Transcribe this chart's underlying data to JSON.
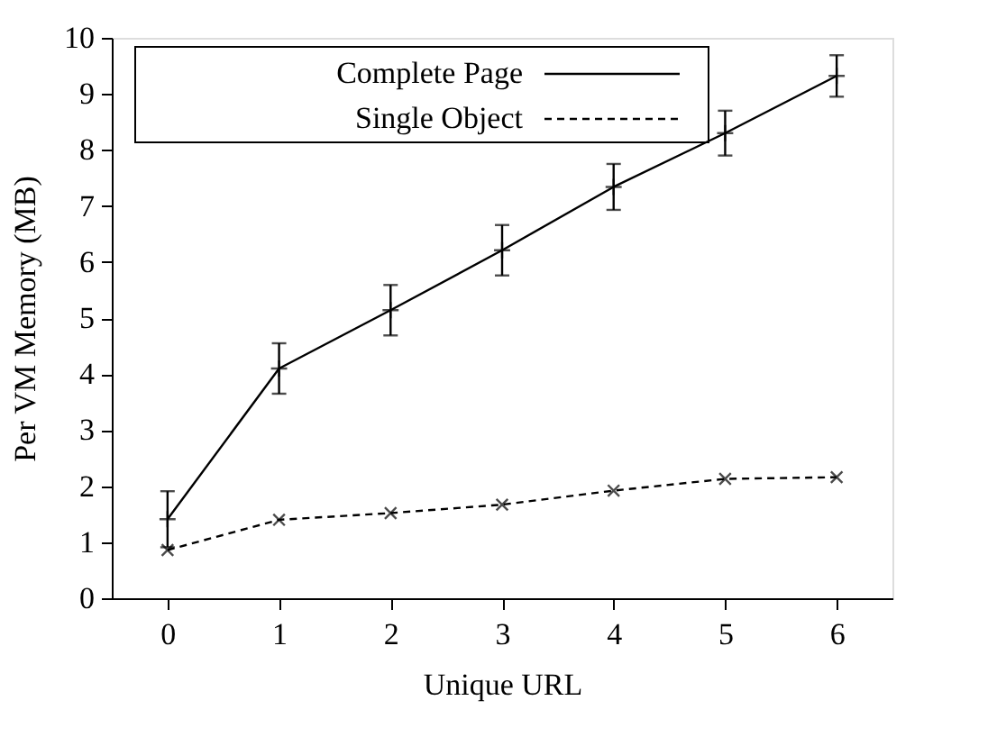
{
  "chart_data": {
    "type": "line",
    "xlabel": "Unique URL",
    "ylabel": "Per VM Memory (MB)",
    "x": [
      0,
      1,
      2,
      3,
      4,
      5,
      6
    ],
    "xlim": [
      -0.5,
      6.5
    ],
    "xticks": [
      0,
      1,
      2,
      3,
      4,
      5,
      6
    ],
    "ylim": [
      0,
      10
    ],
    "yticks": [
      0,
      1,
      2,
      3,
      4,
      5,
      6,
      7,
      8,
      9,
      10
    ],
    "grid": false,
    "legend": "top left",
    "marker": "cross",
    "series": [
      {
        "name": "Complete Page",
        "color": "#000000",
        "line_style": "solid",
        "values": [
          1.41,
          4.1,
          5.14,
          6.21,
          7.34,
          8.3,
          9.32
        ],
        "errors": [
          0.5,
          0.45,
          0.45,
          0.45,
          0.41,
          0.4,
          0.37
        ]
      },
      {
        "name": "Single Object",
        "color": "#000000",
        "line_style": "dashed",
        "values": [
          0.86,
          1.4,
          1.52,
          1.67,
          1.92,
          2.13,
          2.16
        ]
      }
    ]
  }
}
